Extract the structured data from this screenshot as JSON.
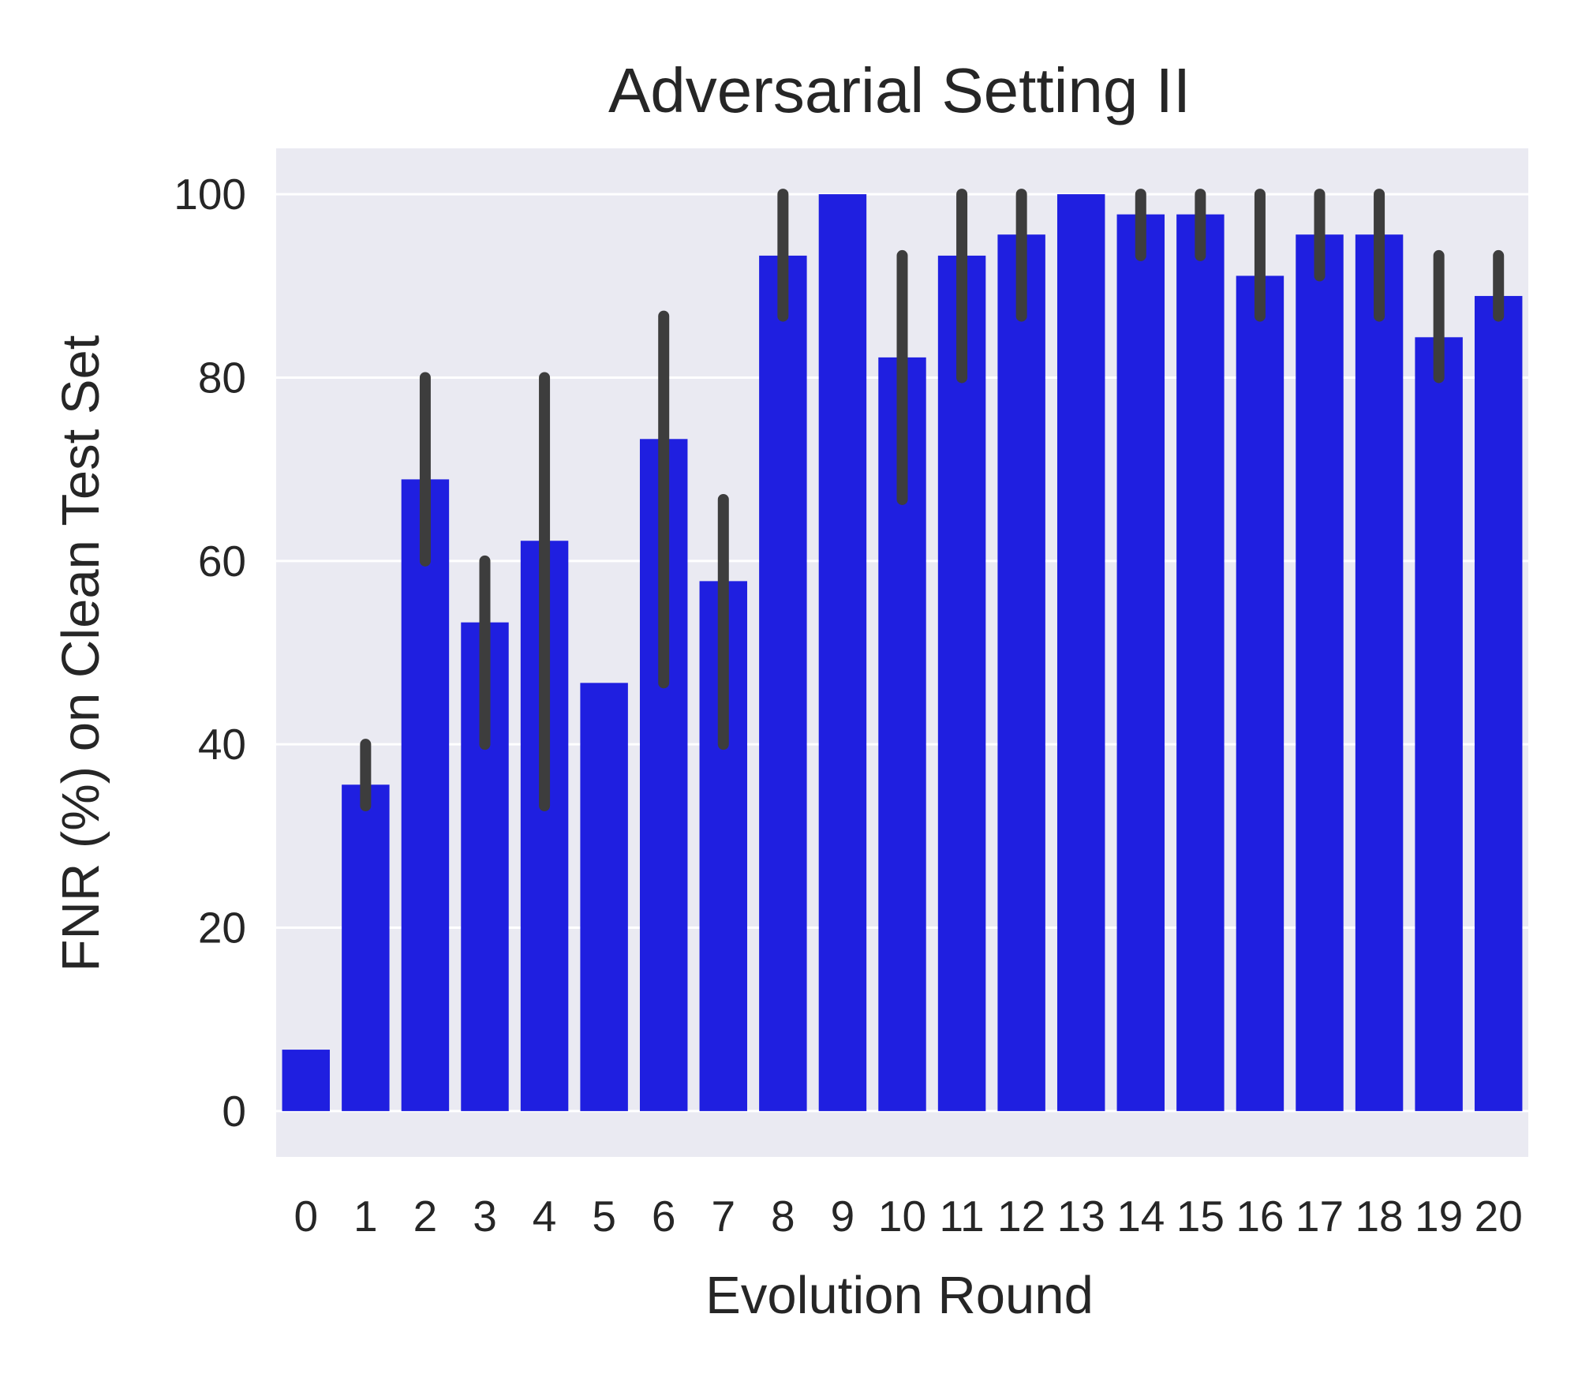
{
  "chart_data": {
    "type": "bar",
    "title": "Adversarial Setting II",
    "xlabel": "Evolution Round",
    "ylabel": "FNR (%) on Clean Test Set",
    "categories": [
      "0",
      "1",
      "2",
      "3",
      "4",
      "5",
      "6",
      "7",
      "8",
      "9",
      "10",
      "11",
      "12",
      "13",
      "14",
      "15",
      "16",
      "17",
      "18",
      "19",
      "20"
    ],
    "values": [
      6.7,
      35.6,
      68.9,
      53.3,
      62.2,
      46.7,
      73.3,
      57.8,
      93.3,
      100.0,
      82.2,
      93.3,
      95.6,
      100.0,
      97.8,
      97.8,
      91.1,
      95.6,
      95.6,
      84.4,
      88.9
    ],
    "error_bars": [
      null,
      [
        33.3,
        40.0
      ],
      [
        60.0,
        80.0
      ],
      [
        40.0,
        60.0
      ],
      [
        33.3,
        80.0
      ],
      null,
      [
        46.7,
        86.7
      ],
      [
        40.0,
        66.7
      ],
      [
        86.7,
        100.0
      ],
      null,
      [
        66.7,
        93.3
      ],
      [
        80.0,
        100.0
      ],
      [
        86.7,
        100.0
      ],
      null,
      [
        93.3,
        100.0
      ],
      [
        93.3,
        100.0
      ],
      [
        86.7,
        100.0
      ],
      [
        91.1,
        100.0
      ],
      [
        86.7,
        100.0
      ],
      [
        80.0,
        93.3
      ],
      [
        86.7,
        93.3
      ]
    ],
    "yticks": [
      0,
      20,
      40,
      60,
      80,
      100
    ],
    "ylim": [
      -5,
      105
    ],
    "grid": true,
    "colors": {
      "bar": "#1f1fe0",
      "error_bar": "#3d3d3d",
      "plot_background": "#eaeaf2",
      "grid": "#ffffff",
      "text": "#262626"
    }
  }
}
